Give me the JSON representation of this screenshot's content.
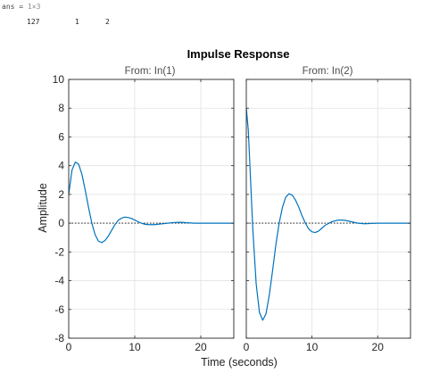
{
  "console": {
    "var_name": "ans",
    "equals": "=",
    "dims": "1×3",
    "values": [
      "127",
      "1",
      "2"
    ]
  },
  "chart_data": {
    "type": "line",
    "title": "Impulse Response",
    "xlabel": "Time (seconds)",
    "ylabel": "Amplitude",
    "xlim": [
      0,
      25
    ],
    "ylim": [
      -8,
      10
    ],
    "x_ticks": [
      "0",
      "10",
      "20"
    ],
    "y_ticks": [
      "10",
      "8",
      "6",
      "4",
      "2",
      "0",
      "-2",
      "-4",
      "-6",
      "-8"
    ],
    "grid": true,
    "line_color": "#0072BD",
    "zero_line": "dotted",
    "panels": [
      {
        "subtitle": "From: In(1)",
        "series": [
          {
            "x": [
              0,
              0.5,
              1,
              1.5,
              2,
              2.5,
              3,
              3.5,
              4,
              4.5,
              5,
              5.5,
              6,
              6.5,
              7,
              7.5,
              8,
              8.5,
              9,
              9.5,
              10,
              10.5,
              11,
              11.5,
              12,
              13,
              14,
              15,
              16,
              17,
              18,
              19,
              20,
              22,
              25
            ],
            "y": [
              2.0,
              3.7,
              4.25,
              4.1,
              3.4,
              2.3,
              1.1,
              0.0,
              -0.8,
              -1.25,
              -1.35,
              -1.2,
              -0.9,
              -0.5,
              -0.1,
              0.2,
              0.35,
              0.42,
              0.4,
              0.33,
              0.22,
              0.1,
              0.0,
              -0.07,
              -0.1,
              -0.1,
              -0.05,
              0.0,
              0.05,
              0.06,
              0.03,
              0.0,
              0.0,
              0.0,
              0.0
            ]
          }
        ]
      },
      {
        "subtitle": "From: In(2)",
        "series": [
          {
            "x": [
              0,
              0.3,
              0.6,
              1,
              1.5,
              2,
              2.5,
              3,
              3.5,
              4,
              4.5,
              5,
              5.5,
              6,
              6.5,
              7,
              7.5,
              8,
              8.5,
              9,
              9.5,
              10,
              10.5,
              11,
              11.5,
              12,
              13,
              14,
              15,
              16,
              17,
              18,
              19,
              20,
              22,
              25
            ],
            "y": [
              8.0,
              6.5,
              3.5,
              -0.5,
              -4.2,
              -6.2,
              -6.75,
              -6.3,
              -5.0,
              -3.3,
              -1.5,
              0.0,
              1.1,
              1.8,
              2.05,
              1.95,
              1.6,
              1.1,
              0.5,
              0.0,
              -0.4,
              -0.6,
              -0.65,
              -0.55,
              -0.35,
              -0.15,
              0.1,
              0.22,
              0.2,
              0.1,
              0.0,
              -0.04,
              -0.02,
              0.0,
              0.0,
              0.0
            ]
          }
        ]
      }
    ]
  }
}
